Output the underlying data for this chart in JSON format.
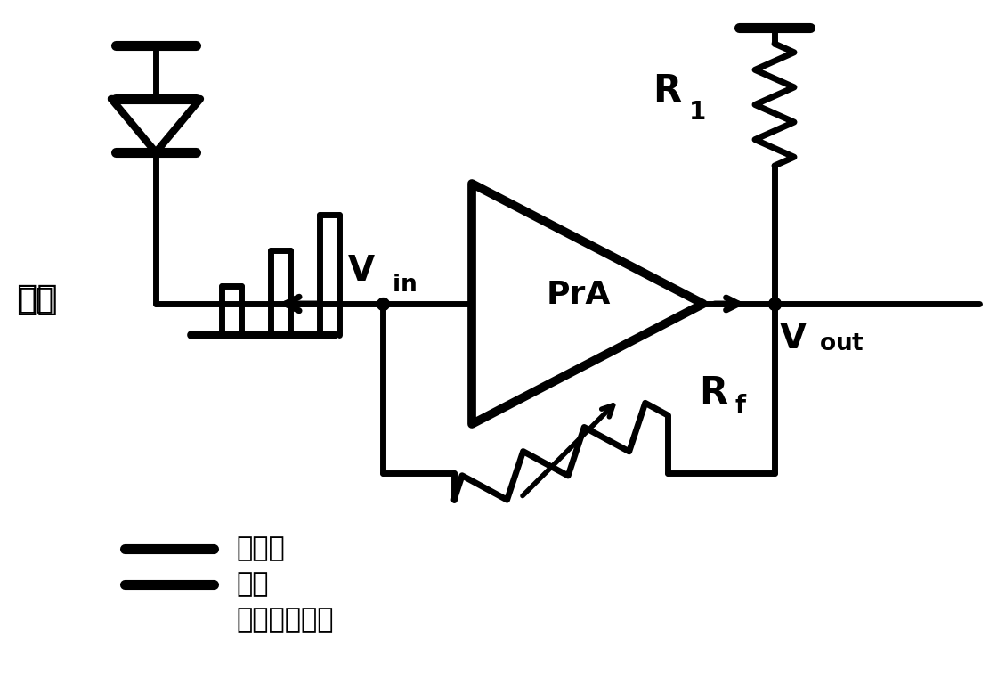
{
  "bg_color": "#ffffff",
  "line_color": "#000000",
  "lw": 5.0,
  "fig_width": 11.3,
  "fig_height": 7.61,
  "labels": {
    "input": "输入",
    "vin_main": "V",
    "vin_sub": "in",
    "vout_main": "V",
    "vout_sub": "out",
    "pra": "PrA",
    "r1_main": "R",
    "r1_sub": "1",
    "rf_main": "R",
    "rf_sub": "f",
    "legend1": "暗电流",
    "legend2": "信号",
    "legend3": "信号直流成分"
  }
}
